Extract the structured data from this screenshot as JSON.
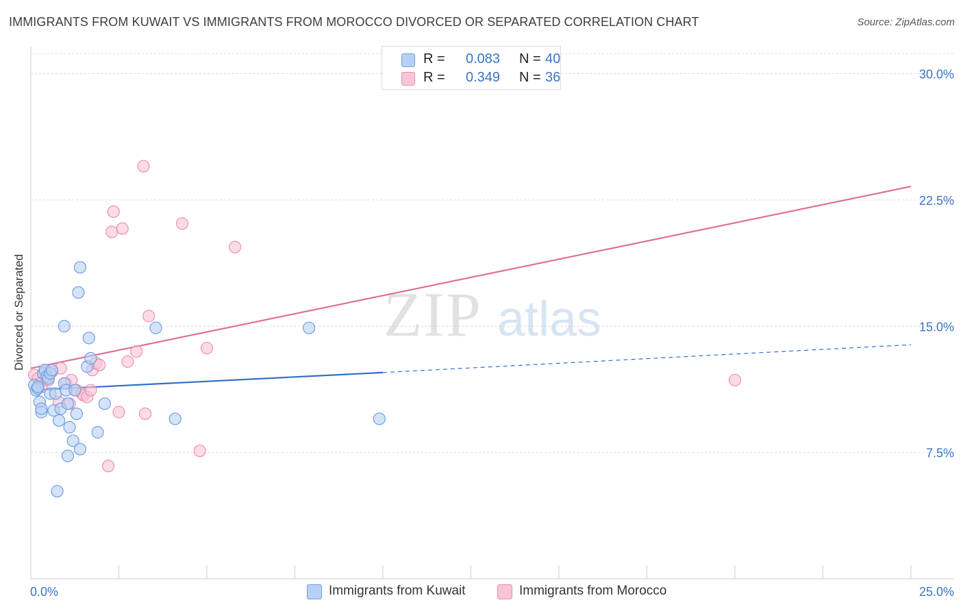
{
  "title": "IMMIGRANTS FROM KUWAIT VS IMMIGRANTS FROM MOROCCO DIVORCED OR SEPARATED CORRELATION CHART",
  "source": "Source: ZipAtlas.com",
  "watermark": {
    "zip": "ZIP",
    "atlas": "atlas"
  },
  "colors": {
    "kuwait_fill": "#b7d0f3",
    "kuwait_stroke": "#6f9ee0",
    "kuwait_line": "#2f6fc8",
    "morocco_fill": "#f8c5d5",
    "morocco_stroke": "#ec8fae",
    "morocco_line": "#e06f98",
    "tick_label": "#3874c8",
    "grid": "#dcdcdc"
  },
  "legend": {
    "kuwait": {
      "r_label": "R =",
      "r_value": "0.083",
      "n_label": "N =",
      "n_value": "40"
    },
    "morocco": {
      "r_label": "R =",
      "r_value": "0.349",
      "n_label": "N =",
      "n_value": "36"
    }
  },
  "chart_data": {
    "type": "scatter",
    "title": "IMMIGRANTS FROM KUWAIT VS IMMIGRANTS FROM MOROCCO DIVORCED OR SEPARATED CORRELATION CHART",
    "xlabel": "",
    "ylabel": "Divorced or Separated",
    "xlim": [
      0,
      25
    ],
    "ylim": [
      0,
      31.2
    ],
    "x_tick_labels": [
      {
        "value": 0,
        "label": "0.0%"
      },
      {
        "value": 25,
        "label": "25.0%"
      }
    ],
    "y_tick_labels": [
      {
        "value": 7.5,
        "label": "7.5%"
      },
      {
        "value": 15,
        "label": "15.0%"
      },
      {
        "value": 22.5,
        "label": "22.5%"
      },
      {
        "value": 30,
        "label": "30.0%"
      }
    ],
    "series": [
      {
        "name": "Immigrants from Kuwait",
        "r": 0.083,
        "n": 40,
        "points": [
          [
            0.1,
            11.5
          ],
          [
            0.15,
            11.2
          ],
          [
            0.2,
            11.3
          ],
          [
            0.25,
            10.5
          ],
          [
            0.3,
            9.9
          ],
          [
            0.3,
            10.1
          ],
          [
            0.35,
            12.2
          ],
          [
            0.4,
            12.4
          ],
          [
            0.45,
            12.0
          ],
          [
            0.5,
            11.9
          ],
          [
            0.55,
            12.2
          ],
          [
            0.55,
            11.0
          ],
          [
            0.6,
            12.4
          ],
          [
            0.65,
            10.0
          ],
          [
            0.7,
            11.0
          ],
          [
            0.8,
            9.4
          ],
          [
            0.85,
            10.1
          ],
          [
            0.95,
            11.6
          ],
          [
            1.0,
            11.2
          ],
          [
            1.05,
            10.4
          ],
          [
            1.1,
            9.0
          ],
          [
            1.2,
            8.2
          ],
          [
            1.25,
            11.2
          ],
          [
            1.3,
            9.8
          ],
          [
            1.4,
            7.7
          ],
          [
            1.05,
            7.3
          ],
          [
            0.75,
            5.2
          ],
          [
            1.35,
            17.0
          ],
          [
            1.4,
            18.5
          ],
          [
            1.6,
            12.6
          ],
          [
            0.95,
            15.0
          ],
          [
            1.7,
            13.1
          ],
          [
            1.65,
            14.3
          ],
          [
            1.9,
            8.7
          ],
          [
            2.1,
            10.4
          ],
          [
            3.55,
            14.9
          ],
          [
            4.1,
            9.5
          ],
          [
            7.9,
            14.9
          ],
          [
            9.9,
            9.5
          ],
          [
            0.2,
            11.4
          ]
        ],
        "trend": {
          "x": [
            0,
            10
          ],
          "y": [
            11.2,
            12.25
          ]
        },
        "trend_dashed": {
          "x": [
            10,
            25
          ],
          "y": [
            12.25,
            13.9
          ]
        }
      },
      {
        "name": "Immigrants from Morocco",
        "r": 0.349,
        "n": 36,
        "points": [
          [
            0.1,
            12.1
          ],
          [
            0.2,
            11.9
          ],
          [
            0.25,
            11.6
          ],
          [
            0.3,
            11.4
          ],
          [
            0.4,
            12.4
          ],
          [
            0.45,
            12.1
          ],
          [
            0.5,
            11.8
          ],
          [
            0.6,
            12.3
          ],
          [
            0.8,
            10.5
          ],
          [
            0.85,
            12.5
          ],
          [
            1.0,
            11.6
          ],
          [
            1.1,
            10.4
          ],
          [
            1.15,
            11.8
          ],
          [
            1.3,
            11.2
          ],
          [
            1.45,
            11.0
          ],
          [
            1.5,
            10.9
          ],
          [
            1.6,
            10.8
          ],
          [
            1.7,
            11.2
          ],
          [
            1.75,
            12.4
          ],
          [
            1.85,
            12.8
          ],
          [
            1.95,
            12.7
          ],
          [
            2.2,
            6.7
          ],
          [
            2.35,
            21.8
          ],
          [
            2.3,
            20.6
          ],
          [
            2.5,
            9.9
          ],
          [
            2.6,
            20.8
          ],
          [
            2.75,
            12.9
          ],
          [
            3.0,
            13.5
          ],
          [
            3.2,
            24.5
          ],
          [
            3.25,
            9.8
          ],
          [
            3.35,
            15.6
          ],
          [
            4.3,
            21.1
          ],
          [
            4.8,
            7.6
          ],
          [
            5.0,
            13.7
          ],
          [
            5.8,
            19.7
          ],
          [
            20.0,
            11.8
          ]
        ],
        "trend": {
          "x": [
            0,
            25
          ],
          "y": [
            12.5,
            23.3
          ]
        }
      }
    ]
  },
  "bottom_legend": [
    {
      "label": "Immigrants from Kuwait"
    },
    {
      "label": "Immigrants from Morocco"
    }
  ]
}
